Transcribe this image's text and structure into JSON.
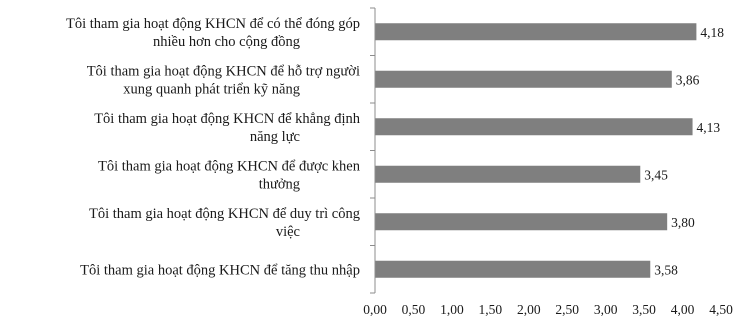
{
  "chart_data": {
    "type": "bar",
    "orientation": "horizontal",
    "categories": [
      [
        "Tôi tham gia hoạt động KHCN để có thể đóng góp",
        "nhiều hơn cho cộng đồng"
      ],
      [
        "Tôi tham gia hoạt động KHCN để hỗ trợ người",
        "xung quanh phát triển kỹ năng"
      ],
      [
        "Tôi tham gia hoạt động KHCN để khẳng định",
        "năng lực"
      ],
      [
        "Tôi tham gia hoạt động KHCN để được khen",
        "thưởng"
      ],
      [
        "Tôi tham gia hoạt động KHCN để duy trì công",
        "việc"
      ],
      [
        "Tôi tham gia hoạt động KHCN để tăng thu nhập"
      ]
    ],
    "values": [
      4.18,
      3.86,
      4.13,
      3.45,
      3.8,
      3.58
    ],
    "data_labels": [
      "4,18",
      "3,86",
      "4,13",
      "3,45",
      "3,80",
      "3,58"
    ],
    "xlim": [
      0,
      4.5
    ],
    "x_ticks": [
      "0,00",
      "0,50",
      "1,00",
      "1,50",
      "2,00",
      "2,50",
      "3,00",
      "3,50",
      "4,00",
      "4,50"
    ],
    "title": "",
    "xlabel": "",
    "ylabel": "",
    "grid": false,
    "bar_color": "#7f7f7f"
  }
}
